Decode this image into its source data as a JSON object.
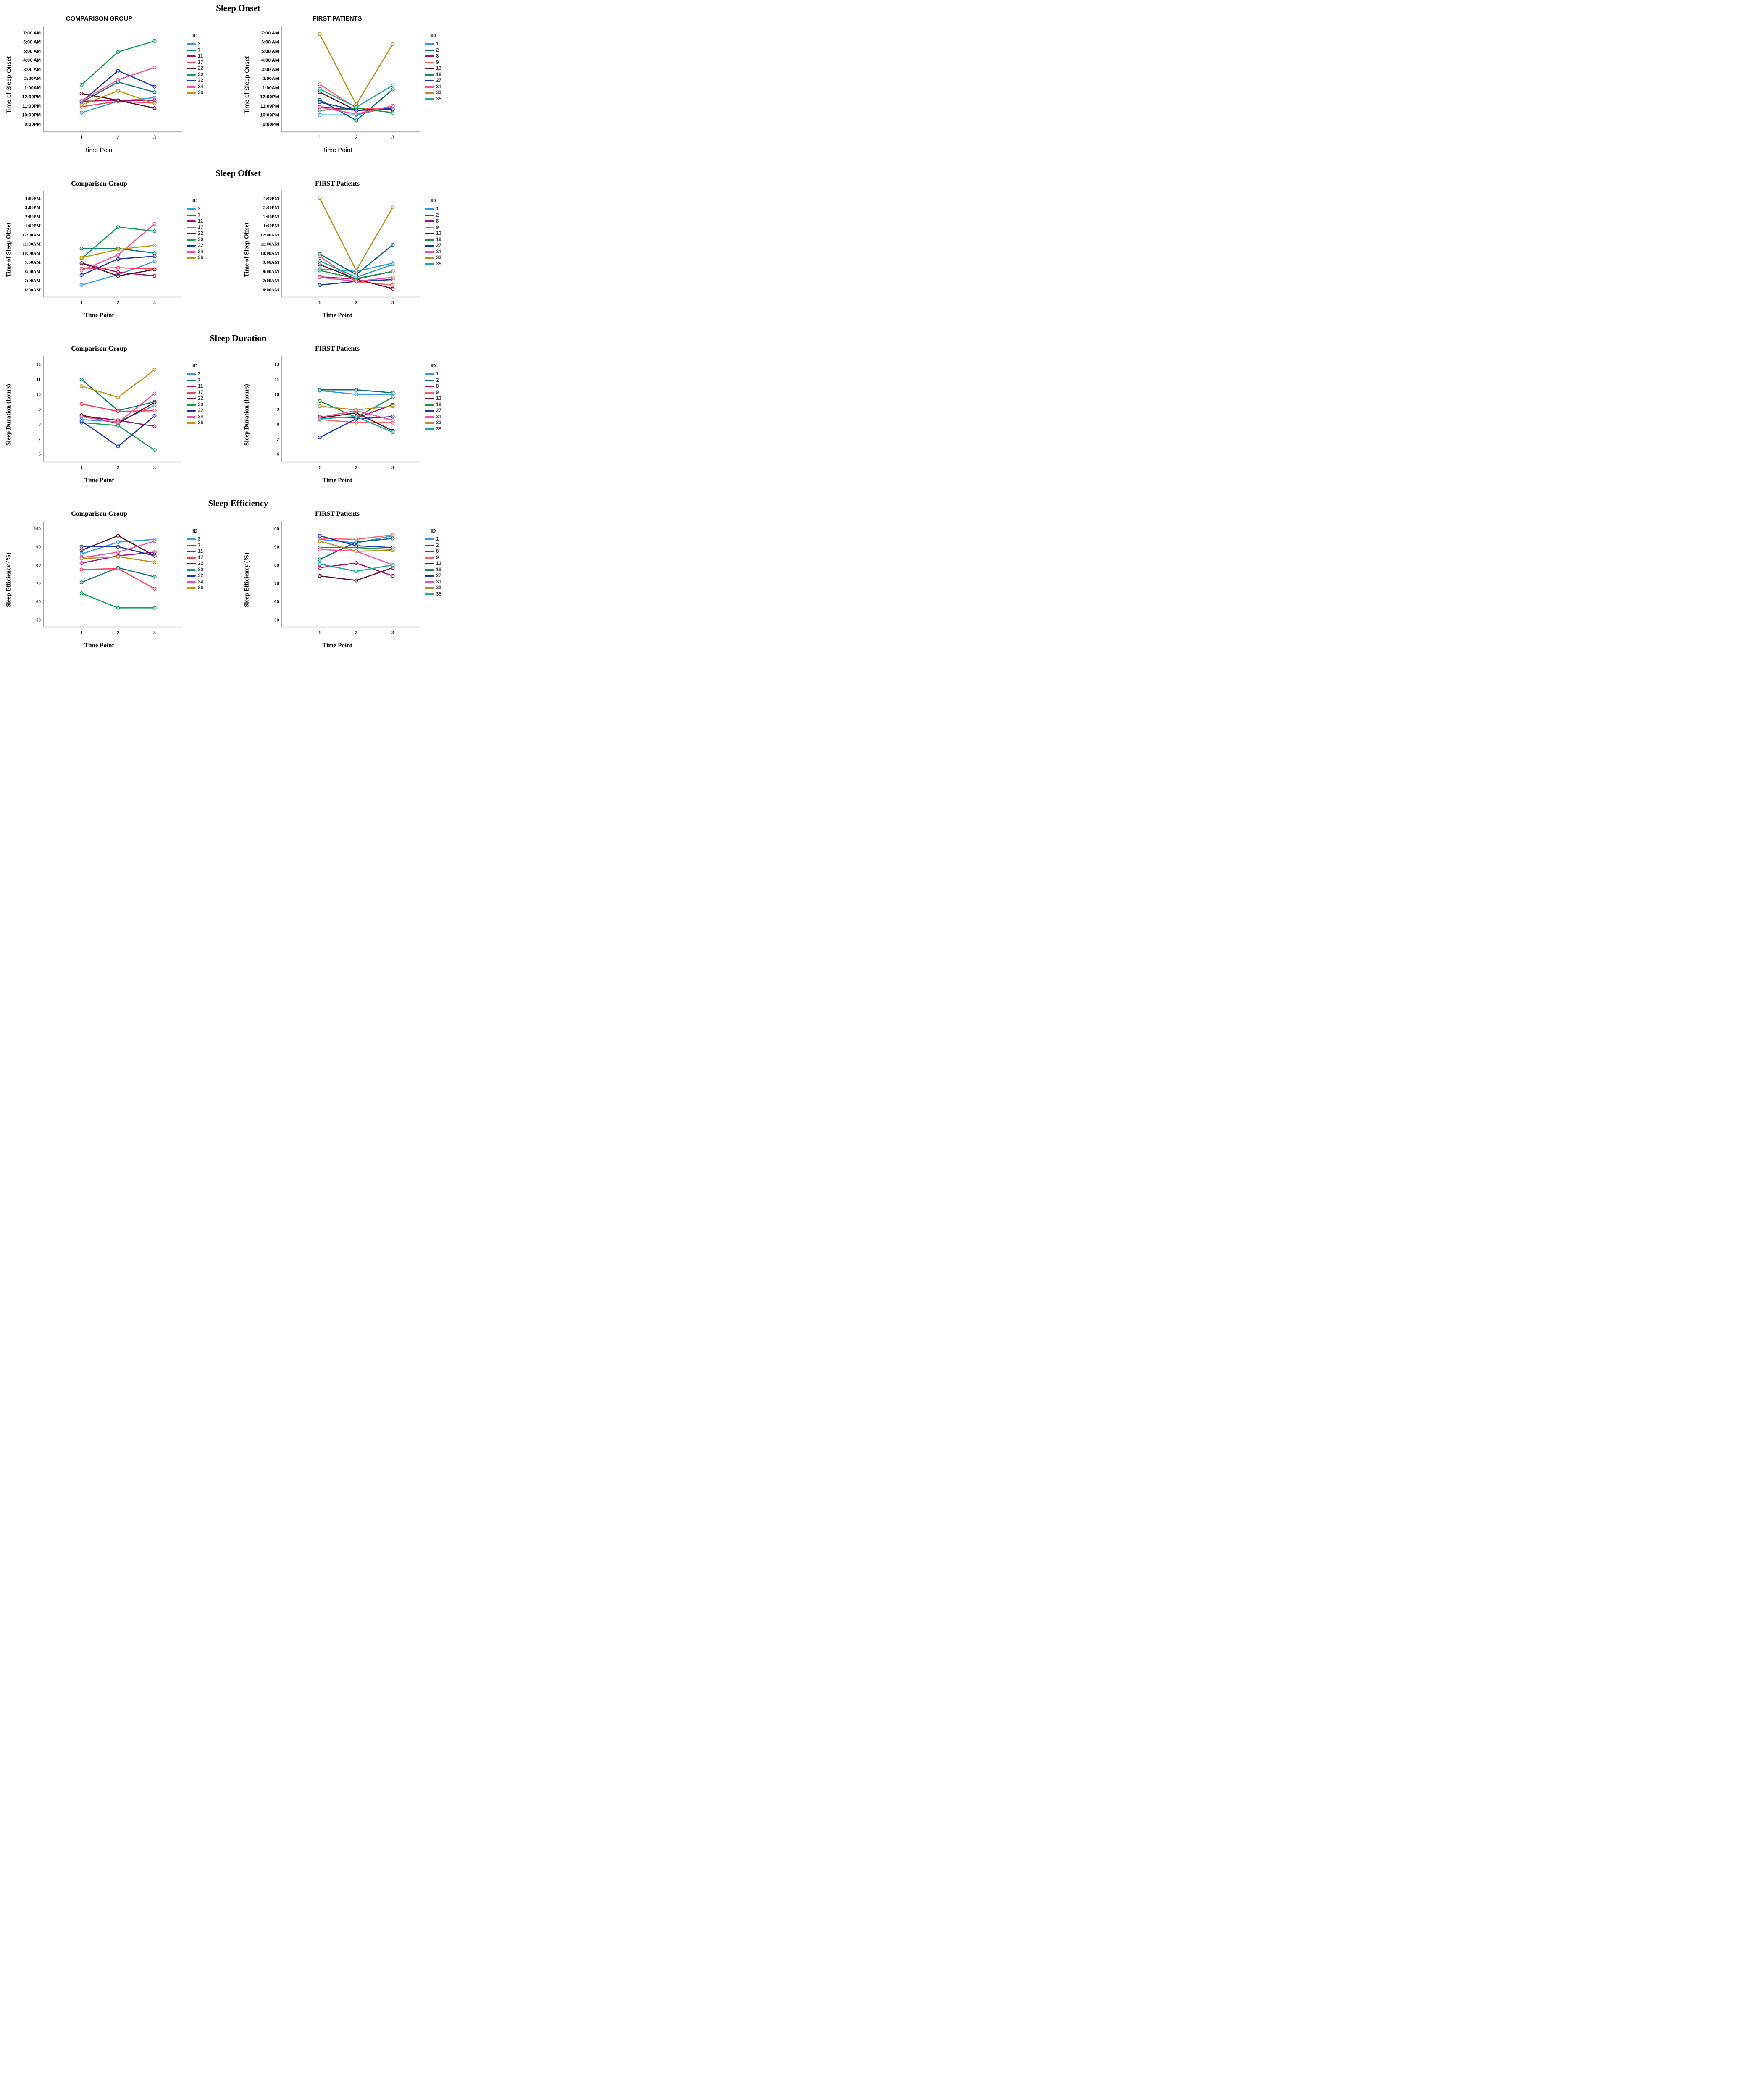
{
  "page": {
    "background": "#ffffff"
  },
  "sections": [
    {
      "header": "Sleep Onset"
    },
    {
      "header": "Sleep Offset"
    },
    {
      "header": "Sleep Duration"
    },
    {
      "header": "Sleep Efficiency"
    }
  ],
  "chart_data": [
    {
      "type": "line",
      "section": "Sleep Onset",
      "group": "comparison",
      "title": "COMPARISON GROUP",
      "xlabel": "Time Point",
      "ylabel": "Time of Sleep Onset",
      "legend_title": "ID",
      "legend_position": "right",
      "grid": false,
      "x": [
        1,
        2,
        3
      ],
      "y_unit": "hours after 9:00PM (1 unit = 1 hour on clock axis)",
      "ylim": [
        -0.85,
        10.55
      ],
      "ytick_values": [
        0,
        1,
        2,
        3,
        4,
        5,
        6,
        7,
        8,
        9,
        10
      ],
      "ytick_labels": [
        "9:00PM",
        "10:00PM",
        "11:00PM",
        "12:00PM",
        "1:00AM",
        "2:00AM",
        "3:00 AM",
        "4:00 AM",
        "5:00 AM",
        "6:00 AM",
        "7:00 AM"
      ],
      "series": [
        {
          "name": "3",
          "color": "#2E9BF0",
          "values": [
            1.25,
            2.5,
            2.9
          ]
        },
        {
          "name": "7",
          "color": "#0F7B72",
          "values": [
            2.4,
            4.6,
            3.5
          ]
        },
        {
          "name": "11",
          "color": "#A50F6E",
          "values": [
            2.5,
            2.6,
            2.6
          ]
        },
        {
          "name": "17",
          "color": "#F93E55",
          "values": [
            1.9,
            2.5,
            2.3
          ]
        },
        {
          "name": "22",
          "color": "#5E1423",
          "values": [
            3.35,
            2.6,
            1.75
          ]
        },
        {
          "name": "30",
          "color": "#0AA351",
          "values": [
            4.3,
            7.9,
            9.1
          ]
        },
        {
          "name": "32",
          "color": "#1C34AE",
          "values": [
            2.45,
            5.85,
            4.1
          ]
        },
        {
          "name": "34",
          "color": "#F64E9E",
          "values": [
            2.55,
            4.85,
            6.2
          ]
        },
        {
          "name": "36",
          "color": "#C0950A",
          "values": [
            2.1,
            3.65,
            2.25
          ]
        }
      ]
    },
    {
      "type": "line",
      "section": "Sleep Onset",
      "group": "first",
      "title": "FIRST PATIENTS",
      "xlabel": "Time Point",
      "ylabel": "Time of Sleep Onset",
      "legend_title": "ID",
      "legend_position": "right",
      "grid": false,
      "x": [
        1,
        2,
        3
      ],
      "y_unit": "hours after 9:00PM (1 unit = 1 hour on clock axis)",
      "ylim": [
        -0.85,
        10.55
      ],
      "ytick_values": [
        0,
        1,
        2,
        3,
        4,
        5,
        6,
        7,
        8,
        9,
        10
      ],
      "ytick_labels": [
        "9:00PM",
        "10:00PM",
        "11:00PM",
        "12:00PM",
        "1:00AM",
        "2:00AM",
        "3:00 AM",
        "4:00 AM",
        "5:00 AM",
        "6:00 AM",
        "7:00 AM"
      ],
      "series": [
        {
          "name": "1",
          "color": "#2E9BF0",
          "values": [
            1.0,
            1.0,
            1.9
          ]
        },
        {
          "name": "2",
          "color": "#0C6B6B",
          "values": [
            2.65,
            0.4,
            3.8
          ]
        },
        {
          "name": "8",
          "color": "#A50F6E",
          "values": [
            1.9,
            1.5,
            1.65
          ]
        },
        {
          "name": "9",
          "color": "#FA6265",
          "values": [
            4.35,
            1.75,
            1.6
          ]
        },
        {
          "name": "13",
          "color": "#5E1423",
          "values": [
            3.5,
            1.5,
            1.6
          ]
        },
        {
          "name": "19",
          "color": "#188F42",
          "values": [
            1.5,
            1.75,
            1.25
          ]
        },
        {
          "name": "27",
          "color": "#1C34AE",
          "values": [
            2.4,
            1.5,
            1.7
          ]
        },
        {
          "name": "31",
          "color": "#F64E9E",
          "values": [
            1.85,
            1.1,
            2.0
          ]
        },
        {
          "name": "33",
          "color": "#B6901E",
          "values": [
            9.85,
            2.15,
            8.75
          ]
        },
        {
          "name": "35",
          "color": "#16A9A2",
          "values": [
            3.85,
            1.85,
            4.25
          ]
        }
      ]
    },
    {
      "type": "line",
      "section": "Sleep Offset",
      "group": "comparison",
      "title": "Comparison Group",
      "xlabel": "Time Point",
      "ylabel": "Time of Sleep Offset",
      "legend_title": "ID",
      "legend_position": "right",
      "grid": false,
      "x": [
        1,
        2,
        3
      ],
      "y_unit": "hours after 6:00AM (1 unit = 1 hour on clock axis)",
      "ylim": [
        -0.8,
        10.6
      ],
      "ytick_values": [
        0,
        1,
        2,
        3,
        4,
        5,
        6,
        7,
        8,
        9,
        10
      ],
      "ytick_labels": [
        "6:00AM",
        "7:00AM",
        "8:00AM",
        "9:00AM",
        "10:00AM",
        "11:00AM",
        "12:00AM",
        "1:00PM",
        "2:00PM",
        "3:00PM",
        "4:00PM"
      ],
      "series": [
        {
          "name": "3",
          "color": "#2E9BF0",
          "values": [
            0.5,
            1.65,
            3.1
          ]
        },
        {
          "name": "7",
          "color": "#0F7B72",
          "values": [
            4.5,
            4.5,
            4.0
          ]
        },
        {
          "name": "11",
          "color": "#A50F6E",
          "values": [
            2.9,
            1.9,
            1.5
          ]
        },
        {
          "name": "17",
          "color": "#F93E55",
          "values": [
            2.3,
            2.4,
            2.25
          ]
        },
        {
          "name": "22",
          "color": "#5E1423",
          "values": [
            2.9,
            1.5,
            2.2
          ]
        },
        {
          "name": "30",
          "color": "#0AA351",
          "values": [
            3.4,
            6.85,
            6.4
          ]
        },
        {
          "name": "32",
          "color": "#1C34AE",
          "values": [
            1.6,
            3.35,
            3.65
          ]
        },
        {
          "name": "34",
          "color": "#F64E9E",
          "values": [
            2.1,
            3.8,
            7.2
          ]
        },
        {
          "name": "36",
          "color": "#C0950A",
          "values": [
            3.5,
            4.4,
            4.85
          ]
        }
      ]
    },
    {
      "type": "line",
      "section": "Sleep Offset",
      "group": "first",
      "title": "FIRST Patients",
      "xlabel": "Time Point",
      "ylabel": "Time of Sleep Offset",
      "legend_title": "ID",
      "legend_position": "right",
      "grid": false,
      "x": [
        1,
        2,
        3
      ],
      "y_unit": "hours after 6:00AM (1 unit = 1 hour on clock axis)",
      "ylim": [
        -0.8,
        10.6
      ],
      "ytick_values": [
        0,
        1,
        2,
        3,
        4,
        5,
        6,
        7,
        8,
        9,
        10
      ],
      "ytick_labels": [
        "6:00AM",
        "7:00AM",
        "8:00AM",
        "9:00AM",
        "10:00AM",
        "11:00AM",
        "12:00AM",
        "1:00PM",
        "2:00PM",
        "3:00PM",
        "4:00PM"
      ],
      "series": [
        {
          "name": "1",
          "color": "#2E9BF0",
          "values": [
            2.25,
            2.0,
            2.9
          ]
        },
        {
          "name": "2",
          "color": "#0C6B6B",
          "values": [
            3.9,
            1.65,
            4.9
          ]
        },
        {
          "name": "8",
          "color": "#A50F6E",
          "values": [
            1.4,
            1.15,
            2.0
          ]
        },
        {
          "name": "9",
          "color": "#FA6265",
          "values": [
            3.65,
            0.85,
            0.5
          ]
        },
        {
          "name": "13",
          "color": "#5E1423",
          "values": [
            2.75,
            1.15,
            0.1
          ]
        },
        {
          "name": "19",
          "color": "#188F42",
          "values": [
            2.1,
            1.2,
            2.0
          ]
        },
        {
          "name": "27",
          "color": "#1C34AE",
          "values": [
            0.5,
            0.9,
            1.1
          ]
        },
        {
          "name": "31",
          "color": "#F64E9E",
          "values": [
            1.35,
            0.9,
            1.35
          ]
        },
        {
          "name": "33",
          "color": "#B6901E",
          "values": [
            10.0,
            2.1,
            9.0
          ]
        },
        {
          "name": "35",
          "color": "#16A9A2",
          "values": [
            3.15,
            1.35,
            2.75
          ]
        }
      ]
    },
    {
      "type": "line",
      "section": "Sleep Duration",
      "group": "comparison",
      "title": "Comparison Group",
      "xlabel": "Time Point",
      "ylabel": "Sleep Duration (hours)",
      "legend_title": "ID",
      "legend_position": "right",
      "grid": false,
      "x": [
        1,
        2,
        3
      ],
      "y_unit": "hours",
      "ylim": [
        5.45,
        12.45
      ],
      "ytick_values": [
        6,
        7,
        8,
        9,
        10,
        11,
        12
      ],
      "ytick_labels": [
        "6",
        "7",
        "8",
        "9",
        "10",
        "11",
        "12"
      ],
      "series": [
        {
          "name": "3",
          "color": "#2E9BF0",
          "values": [
            8.3,
            8.15,
            9.25
          ]
        },
        {
          "name": "7",
          "color": "#0F7B72",
          "values": [
            11.0,
            8.9,
            9.5
          ]
        },
        {
          "name": "11",
          "color": "#A50F6E",
          "values": [
            8.55,
            8.25,
            7.85
          ]
        },
        {
          "name": "17",
          "color": "#F93E55",
          "values": [
            9.35,
            8.85,
            8.9
          ]
        },
        {
          "name": "22",
          "color": "#5E1423",
          "values": [
            8.6,
            8.05,
            9.45
          ]
        },
        {
          "name": "30",
          "color": "#0AA351",
          "values": [
            8.1,
            7.9,
            6.25
          ]
        },
        {
          "name": "32",
          "color": "#1C34AE",
          "values": [
            8.2,
            6.5,
            8.55
          ]
        },
        {
          "name": "34",
          "color": "#F64E9E",
          "values": [
            8.5,
            8.1,
            10.05
          ]
        },
        {
          "name": "36",
          "color": "#C0950A",
          "values": [
            10.55,
            9.8,
            11.65
          ]
        }
      ]
    },
    {
      "type": "line",
      "section": "Sleep Duration",
      "group": "first",
      "title": "FIRST Patients",
      "xlabel": "Time Point",
      "ylabel": "Sleep Duration (hours)",
      "legend_title": "ID",
      "legend_position": "right",
      "grid": false,
      "x": [
        1,
        2,
        3
      ],
      "y_unit": "hours",
      "ylim": [
        5.45,
        12.45
      ],
      "ytick_values": [
        6,
        7,
        8,
        9,
        10,
        11,
        12
      ],
      "ytick_labels": [
        "6",
        "7",
        "8",
        "9",
        "10",
        "11",
        "12"
      ],
      "series": [
        {
          "name": "1",
          "color": "#2E9BF0",
          "values": [
            10.25,
            10.0,
            10.0
          ]
        },
        {
          "name": "2",
          "color": "#0C6B6B",
          "values": [
            10.3,
            10.3,
            10.1
          ]
        },
        {
          "name": "8",
          "color": "#A50F6E",
          "values": [
            8.5,
            8.4,
            9.3
          ]
        },
        {
          "name": "9",
          "color": "#FA6265",
          "values": [
            8.3,
            8.1,
            8.1
          ]
        },
        {
          "name": "13",
          "color": "#5E1423",
          "values": [
            8.4,
            8.75,
            7.55
          ]
        },
        {
          "name": "19",
          "color": "#188F42",
          "values": [
            9.55,
            8.45,
            9.8
          ]
        },
        {
          "name": "27",
          "color": "#1C34AE",
          "values": [
            7.1,
            8.35,
            8.5
          ]
        },
        {
          "name": "31",
          "color": "#F64E9E",
          "values": [
            8.45,
            8.9,
            8.25
          ]
        },
        {
          "name": "33",
          "color": "#B6901E",
          "values": [
            9.2,
            8.95,
            9.2
          ]
        },
        {
          "name": "35",
          "color": "#16A9A2",
          "values": [
            8.35,
            8.5,
            7.45
          ]
        }
      ]
    },
    {
      "type": "line",
      "section": "Sleep Efficiency",
      "group": "comparison",
      "title": "Comparison Group",
      "xlabel": "Time Point",
      "ylabel": "Sleep Efficiency (%)",
      "legend_title": "ID",
      "legend_position": "right",
      "grid": false,
      "x": [
        1,
        2,
        3
      ],
      "y_unit": "percent",
      "ylim": [
        46,
        103
      ],
      "ytick_values": [
        50,
        60,
        70,
        80,
        90,
        100
      ],
      "ytick_labels": [
        "50",
        "60",
        "70",
        "80",
        "90",
        "100"
      ],
      "series": [
        {
          "name": "3",
          "color": "#2E9BF0",
          "values": [
            86,
            92.5,
            94
          ]
        },
        {
          "name": "7",
          "color": "#0F7B72",
          "values": [
            70.5,
            78.5,
            73.5
          ]
        },
        {
          "name": "11",
          "color": "#A50F6E",
          "values": [
            81,
            85,
            87
          ]
        },
        {
          "name": "17",
          "color": "#F93E55",
          "values": [
            77.5,
            78,
            67
          ]
        },
        {
          "name": "22",
          "color": "#5E1423",
          "values": [
            88,
            96,
            85
          ]
        },
        {
          "name": "30",
          "color": "#0AA351",
          "values": [
            64.5,
            56.5,
            56.5
          ]
        },
        {
          "name": "32",
          "color": "#1C34AE",
          "values": [
            90,
            90,
            85
          ]
        },
        {
          "name": "34",
          "color": "#F64E9E",
          "values": [
            84,
            87,
            93
          ]
        },
        {
          "name": "36",
          "color": "#C0950A",
          "values": [
            83.5,
            84.5,
            81.5
          ]
        }
      ]
    },
    {
      "type": "line",
      "section": "Sleep Efficiency",
      "group": "first",
      "title": "FIRST Patients",
      "xlabel": "Time Point",
      "ylabel": "Sleep Efficiency (%)",
      "legend_title": "ID",
      "legend_position": "right",
      "grid": false,
      "x": [
        1,
        2,
        3
      ],
      "y_unit": "percent",
      "ylim": [
        46,
        103
      ],
      "ytick_values": [
        50,
        60,
        70,
        80,
        90,
        100
      ],
      "ytick_labels": [
        "50",
        "60",
        "70",
        "80",
        "90",
        "100"
      ],
      "series": [
        {
          "name": "1",
          "color": "#2E9BF0",
          "values": [
            94,
            92,
            96
          ]
        },
        {
          "name": "2",
          "color": "#0C6B6B",
          "values": [
            83,
            92.5,
            94.5
          ]
        },
        {
          "name": "8",
          "color": "#A50F6E",
          "values": [
            78.5,
            81,
            74
          ]
        },
        {
          "name": "9",
          "color": "#FA6265",
          "values": [
            94.5,
            94,
            96.5
          ]
        },
        {
          "name": "13",
          "color": "#5E1423",
          "values": [
            74,
            71.5,
            78.5
          ]
        },
        {
          "name": "19",
          "color": "#188F42",
          "values": [
            89.5,
            89.5,
            88.5
          ]
        },
        {
          "name": "27",
          "color": "#1C34AE",
          "values": [
            96,
            90.5,
            89.5
          ]
        },
        {
          "name": "31",
          "color": "#F64E9E",
          "values": [
            88.5,
            87.5,
            80
          ]
        },
        {
          "name": "33",
          "color": "#B6901E",
          "values": [
            93,
            87.5,
            88
          ]
        },
        {
          "name": "35",
          "color": "#16A9A2",
          "values": [
            80.5,
            76.5,
            80
          ]
        }
      ]
    }
  ]
}
